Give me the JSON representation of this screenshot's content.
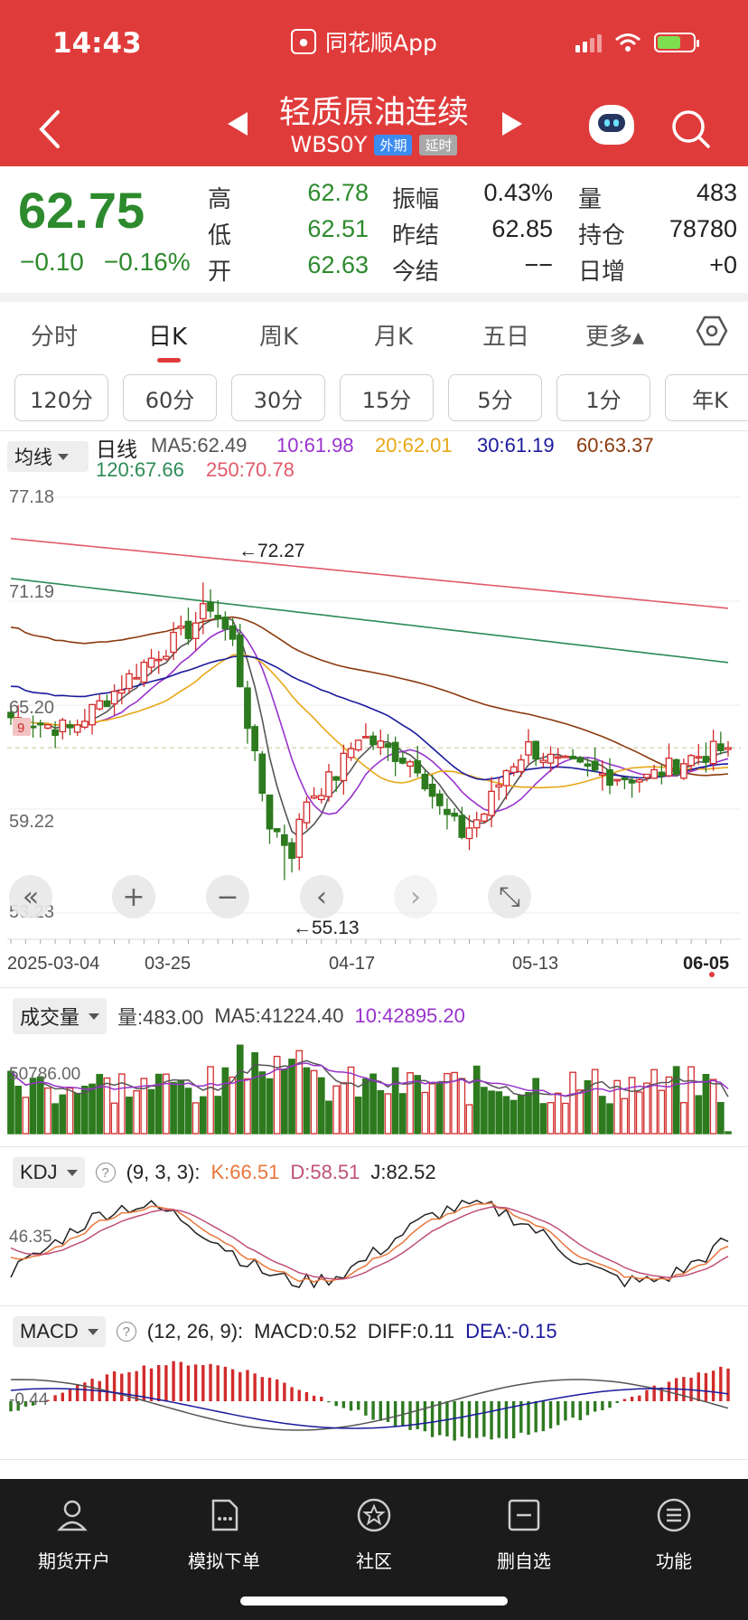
{
  "status_bar": {
    "time": "14:43",
    "app_name": "同花顺App"
  },
  "header": {
    "title": "轻质原油连续",
    "code": "WBS0Y",
    "tag1": "外期",
    "tag2": "延时"
  },
  "quote": {
    "price": "62.75",
    "change": "−0.10",
    "change_pct": "−0.16%",
    "fields": [
      {
        "label": "高",
        "value": "62.78",
        "color": "green"
      },
      {
        "label": "低",
        "value": "62.51",
        "color": "green"
      },
      {
        "label": "开",
        "value": "62.63",
        "color": "green"
      },
      {
        "label": "振幅",
        "value": "0.43%",
        "color": "dark"
      },
      {
        "label": "昨结",
        "value": "62.85",
        "color": "dark"
      },
      {
        "label": "今结",
        "value": "−−",
        "color": "dark"
      },
      {
        "label": "量",
        "value": "483",
        "color": "dark"
      },
      {
        "label": "持仓",
        "value": "78780",
        "color": "dark"
      },
      {
        "label": "日增",
        "value": "+0",
        "color": "dark"
      }
    ]
  },
  "tabs": [
    "分时",
    "日K",
    "周K",
    "月K",
    "五日",
    "更多▴"
  ],
  "periods": [
    "120分",
    "60分",
    "30分",
    "15分",
    "5分",
    "1分",
    "年K"
  ],
  "ma_legend": {
    "selector": "均线",
    "label": "日线",
    "items": [
      {
        "text": "MA5:62.49",
        "color": "#555555"
      },
      {
        "text": "10:61.98",
        "color": "#9933cc"
      },
      {
        "text": "20:62.01",
        "color": "#e6a817"
      },
      {
        "text": "30:61.19",
        "color": "#1a1a9c"
      },
      {
        "text": "60:63.37",
        "color": "#8b3a0f"
      },
      {
        "text": "120:67.66",
        "color": "#2e8b57"
      },
      {
        "text": "250:70.78",
        "color": "#e05a6a"
      }
    ]
  },
  "chart_data": [
    {
      "type": "candlestick",
      "title": "日线",
      "y_ticks": [
        "77.18",
        "71.19",
        "65.20",
        "59.22",
        "53.23"
      ],
      "ylim": [
        53.23,
        77.18
      ],
      "x_ticks": [
        "2025-03-04",
        "03-25",
        "04-17",
        "05-13",
        "06-05"
      ],
      "annotations": [
        "←72.27",
        "←55.13"
      ],
      "high_marker": 72.27,
      "low_marker": 55.13,
      "last_price": 62.75,
      "side_badge": "9"
    },
    {
      "type": "bar",
      "title": "成交量",
      "legend": [
        "量:483.00",
        "MA5:41224.40",
        "10:42895.20"
      ],
      "y_ticks": [
        "50786.00"
      ]
    },
    {
      "type": "line",
      "title": "KDJ",
      "params": "(9, 3, 3):",
      "legend": [
        {
          "text": "K:66.51",
          "color": "#e8763a"
        },
        {
          "text": "D:58.51",
          "color": "#c0507a"
        },
        {
          "text": "J:82.52",
          "color": "#222222"
        }
      ],
      "y_ticks": [
        "46.35"
      ]
    },
    {
      "type": "bar",
      "title": "MACD",
      "params": "(12, 26, 9):",
      "legend": [
        {
          "text": "MACD:0.52",
          "color": "#333333"
        },
        {
          "text": "DIFF:0.11",
          "color": "#333333"
        },
        {
          "text": "DEA:-0.15",
          "color": "#1a1a9c"
        }
      ],
      "y_ticks": [
        "-0.44"
      ]
    }
  ],
  "volume_header": {
    "selector": "成交量"
  },
  "kdj_header": {
    "selector": "KDJ",
    "help": "?"
  },
  "macd_header": {
    "selector": "MACD",
    "help": "?"
  },
  "chart_controls": [
    "«",
    "+",
    "−",
    "‹",
    "›",
    "⤡"
  ],
  "bottom_nav": [
    "期货开户",
    "模拟下单",
    "社区",
    "删自选",
    "功能"
  ],
  "colors": {
    "header_red": "#e03b3b",
    "up_red": "#d22b2b",
    "down_green": "#2d7a1f"
  }
}
